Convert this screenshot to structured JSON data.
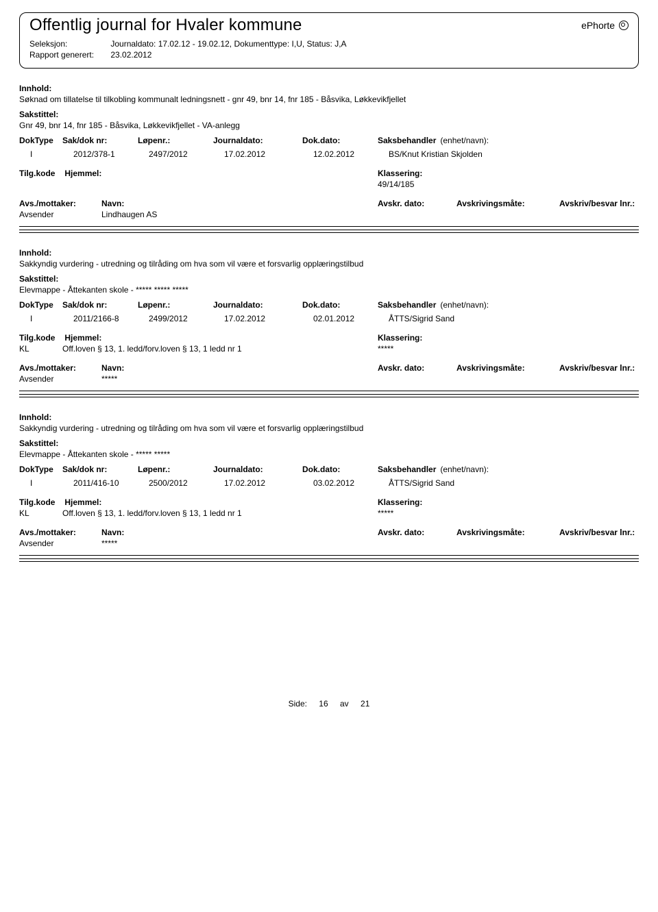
{
  "header": {
    "title": "Offentlig journal for Hvaler kommune",
    "brand": "ePhorte",
    "seleksjon_label": "Seleksjon:",
    "seleksjon_value": "Journaldato: 17.02.12 - 19.02.12, Dokumenttype: I,U, Status: J,A",
    "rapport_label": "Rapport generert:",
    "rapport_value": "23.02.2012"
  },
  "labels": {
    "innhold": "Innhold:",
    "sakstittel": "Sakstittel:",
    "doktype": "DokType",
    "sakdok": "Sak/dok nr:",
    "lopenr": "Løpenr.:",
    "journaldato": "Journaldato:",
    "dokdato": "Dok.dato:",
    "saksbehandler": "Saksbehandler",
    "enhet": "(enhet/navn):",
    "tilgkode": "Tilg.kode",
    "hjemmel": "Hjemmel:",
    "klassering": "Klassering:",
    "avsmott": "Avs./mottaker:",
    "navn": "Navn:",
    "avskrdato": "Avskr. dato:",
    "avskrmate": "Avskrivingsmåte:",
    "avskrlnr": "Avskriv/besvar lnr.:",
    "avsender": "Avsender"
  },
  "entries": [
    {
      "innhold": "Søknad om tillatelse til tilkobling kommunalt ledningsnett - gnr 49, bnr 14, fnr 185 - Båsvika, Løkkevikfjellet",
      "sakstittel": "Gnr 49, bnr 14, fnr 185 - Båsvika, Løkkevikfjellet - VA-anlegg",
      "doktype": "I",
      "sakdok": "2012/378-1",
      "lopenr": "2497/2012",
      "jdato": "17.02.2012",
      "ddato": "12.02.2012",
      "handler": "BS/Knut Kristian Skjolden",
      "tilgkode": "",
      "hjemmel": "",
      "klassering": "49/14/185",
      "avsender_navn": "Lindhaugen AS"
    },
    {
      "innhold": "Sakkyndig vurdering - utredning og tilråding om hva som vil være et forsvarlig opplæringstilbud",
      "sakstittel": "Elevmappe - Åttekanten skole - ***** ***** *****",
      "doktype": "I",
      "sakdok": "2011/2166-8",
      "lopenr": "2499/2012",
      "jdato": "17.02.2012",
      "ddato": "02.01.2012",
      "handler": "ÅTTS/Sigrid Sand",
      "tilgkode": "KL",
      "hjemmel": "Off.loven § 13, 1. ledd/forv.loven § 13, 1 ledd nr 1",
      "klassering": "*****",
      "avsender_navn": "*****"
    },
    {
      "innhold": "Sakkyndig vurdering - utredning og tilråding om hva som vil være et forsvarlig opplæringstilbud",
      "sakstittel": "Elevmappe - Åttekanten skole - ***** *****",
      "doktype": "I",
      "sakdok": "2011/416-10",
      "lopenr": "2500/2012",
      "jdato": "17.02.2012",
      "ddato": "03.02.2012",
      "handler": "ÅTTS/Sigrid Sand",
      "tilgkode": "KL",
      "hjemmel": "Off.loven § 13, 1. ledd/forv.loven § 13, 1 ledd nr 1",
      "klassering": "*****",
      "avsender_navn": "*****"
    }
  ],
  "footer": {
    "side_label": "Side:",
    "page": "16",
    "av_label": "av",
    "total": "21"
  }
}
